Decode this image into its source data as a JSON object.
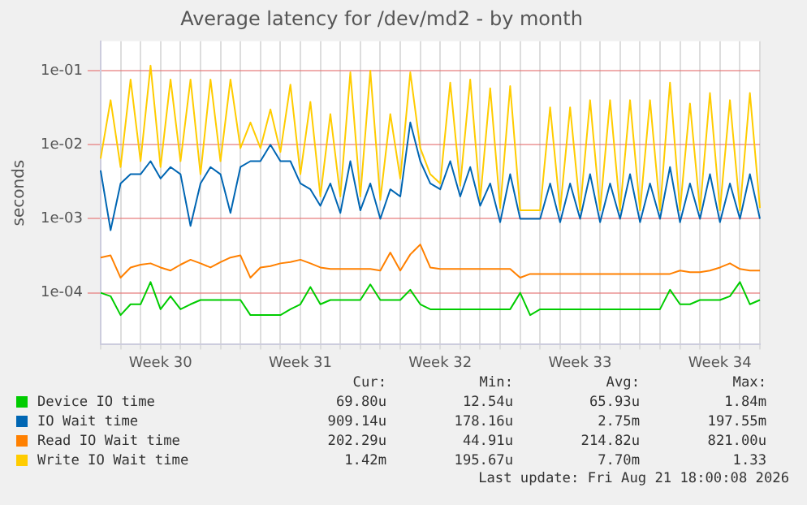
{
  "chart_data": {
    "type": "line",
    "title": "Average latency for /dev/md2 - by month",
    "ylabel": "seconds",
    "log": "y",
    "grid": true,
    "legend": "bottom",
    "marker": "none",
    "line_style": "solid",
    "categories": [
      null,
      null,
      null,
      null,
      null,
      null,
      "Week 30",
      null,
      null,
      null,
      null,
      null,
      null,
      null,
      null,
      null,
      null,
      null,
      null,
      null,
      "Week 31",
      null,
      null,
      null,
      null,
      null,
      null,
      null,
      null,
      null,
      null,
      null,
      null,
      null,
      "Week 32",
      null,
      null,
      null,
      null,
      null,
      null,
      null,
      null,
      null,
      null,
      null,
      null,
      null,
      "Week 33",
      null,
      null,
      null,
      null,
      null,
      null,
      null,
      null,
      null,
      null,
      null,
      null,
      null,
      "Week 34",
      null,
      null,
      null,
      null
    ],
    "ylim": [
      2e-05,
      0.25
    ],
    "yticks": [
      {
        "value": 0.0001,
        "label": "1e-04"
      },
      {
        "value": 0.001,
        "label": "1e-03"
      },
      {
        "value": 0.01,
        "label": "1e-02"
      },
      {
        "value": 0.1,
        "label": "1e-01"
      }
    ],
    "series": [
      {
        "name": "Device IO time",
        "color": "#00cc00",
        "values": [
          0.0001,
          9e-05,
          5e-05,
          7e-05,
          7e-05,
          0.00014,
          6e-05,
          9e-05,
          6e-05,
          7e-05,
          8e-05,
          8e-05,
          8e-05,
          8e-05,
          8e-05,
          5e-05,
          5e-05,
          5e-05,
          5e-05,
          6e-05,
          7e-05,
          0.00012,
          7e-05,
          8e-05,
          8e-05,
          8e-05,
          8e-05,
          0.00013,
          8e-05,
          8e-05,
          8e-05,
          0.00011,
          7e-05,
          6e-05,
          6e-05,
          6e-05,
          6e-05,
          6e-05,
          6e-05,
          6e-05,
          6e-05,
          6e-05,
          0.0001,
          5e-05,
          6e-05,
          6e-05,
          6e-05,
          6e-05,
          6e-05,
          6e-05,
          6e-05,
          6e-05,
          6e-05,
          6e-05,
          6e-05,
          6e-05,
          6e-05,
          0.00011,
          7e-05,
          7e-05,
          8e-05,
          8e-05,
          8e-05,
          9e-05,
          0.00014,
          7e-05,
          8e-05
        ]
      },
      {
        "name": "IO Wait time",
        "color": "#0066b3",
        "values": [
          0.0045,
          0.0007,
          0.003,
          0.004,
          0.004,
          0.006,
          0.0035,
          0.005,
          0.004,
          0.0008,
          0.003,
          0.005,
          0.004,
          0.0012,
          0.005,
          0.006,
          0.006,
          0.01,
          0.006,
          0.006,
          0.003,
          0.0025,
          0.0015,
          0.003,
          0.0012,
          0.006,
          0.0013,
          0.003,
          0.001,
          0.0025,
          0.002,
          0.02,
          0.006,
          0.003,
          0.0025,
          0.006,
          0.002,
          0.005,
          0.0015,
          0.003,
          0.0009,
          0.004,
          0.001,
          0.001,
          0.001,
          0.003,
          0.0009,
          0.003,
          0.001,
          0.004,
          0.0009,
          0.003,
          0.001,
          0.004,
          0.0009,
          0.003,
          0.001,
          0.005,
          0.0009,
          0.003,
          0.001,
          0.004,
          0.0009,
          0.003,
          0.001,
          0.004,
          0.001
        ]
      },
      {
        "name": "Read IO Wait time",
        "color": "#ff8000",
        "values": [
          0.0003,
          0.00032,
          0.00016,
          0.00022,
          0.00024,
          0.00025,
          0.00022,
          0.0002,
          0.00024,
          0.00028,
          0.00025,
          0.00022,
          0.00026,
          0.0003,
          0.00032,
          0.00016,
          0.00022,
          0.00023,
          0.00025,
          0.00026,
          0.00028,
          0.00025,
          0.00022,
          0.00021,
          0.00021,
          0.00021,
          0.00021,
          0.00021,
          0.0002,
          0.00035,
          0.0002,
          0.00033,
          0.00045,
          0.00022,
          0.00021,
          0.00021,
          0.00021,
          0.00021,
          0.00021,
          0.00021,
          0.00021,
          0.00021,
          0.00016,
          0.00018,
          0.00018,
          0.00018,
          0.00018,
          0.00018,
          0.00018,
          0.00018,
          0.00018,
          0.00018,
          0.00018,
          0.00018,
          0.00018,
          0.00018,
          0.00018,
          0.00018,
          0.0002,
          0.00019,
          0.00019,
          0.0002,
          0.00022,
          0.00025,
          0.00021,
          0.0002,
          0.0002
        ]
      },
      {
        "name": "Write IO Wait time",
        "color": "#ffcc00",
        "values": [
          0.0065,
          0.04,
          0.005,
          0.076,
          0.006,
          0.117,
          0.005,
          0.076,
          0.006,
          0.076,
          0.004,
          0.076,
          0.006,
          0.076,
          0.009,
          0.02,
          0.009,
          0.03,
          0.008,
          0.065,
          0.004,
          0.038,
          0.002,
          0.026,
          0.002,
          0.095,
          0.002,
          0.1,
          0.0018,
          0.026,
          0.0035,
          0.095,
          0.009,
          0.004,
          0.003,
          0.069,
          0.0028,
          0.076,
          0.0018,
          0.058,
          0.0014,
          0.062,
          0.0013,
          0.0013,
          0.0013,
          0.032,
          0.0013,
          0.032,
          0.0013,
          0.04,
          0.0013,
          0.04,
          0.0013,
          0.04,
          0.0013,
          0.04,
          0.0013,
          0.069,
          0.0013,
          0.036,
          0.0013,
          0.05,
          0.0013,
          0.04,
          0.0013,
          0.05,
          0.0014
        ]
      }
    ],
    "annotations": [
      "Cur:",
      "Min:",
      "Avg:",
      "Max:",
      "69.80u",
      "12.54u",
      "65.93u",
      "1.84m",
      "909.14u",
      "178.16u",
      "2.75m",
      "197.55m",
      "202.29u",
      "44.91u",
      "214.82u",
      "821.00u",
      "1.42m",
      "195.67u",
      "7.70m",
      "1.33",
      "Last update: Fri Aug 21 18:00:08 2026"
    ]
  }
}
